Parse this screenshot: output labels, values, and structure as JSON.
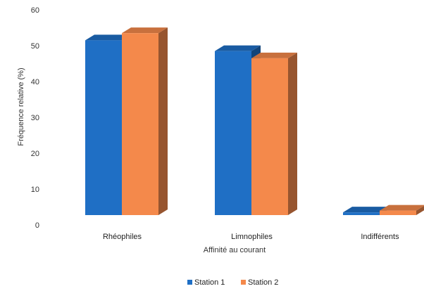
{
  "chart_data": {
    "type": "bar",
    "categories": [
      "Rhéophiles",
      "Limnophiles",
      "Indifférents"
    ],
    "series": [
      {
        "name": "Station 1",
        "values": [
          51.5,
          48.5,
          3.5
        ],
        "color": "#1F6FC5"
      },
      {
        "name": "Station 2",
        "values": [
          53.5,
          46.5,
          4
        ],
        "color": "#F4894B"
      }
    ],
    "ylabel": "Fréquence relative (%)",
    "xlabel": "Affinité au courant",
    "ylim": [
      0,
      60
    ],
    "yticks": [
      0,
      10,
      20,
      30,
      40,
      50,
      60
    ],
    "grid": false,
    "style": "3d",
    "legend_position": "bottom"
  }
}
